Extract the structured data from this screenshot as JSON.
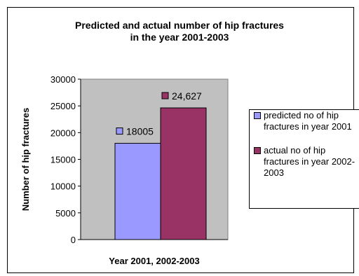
{
  "chart_data": {
    "type": "bar",
    "title_lines": [
      "Predicted and actual number of hip fractures",
      "in the year 2001-2003"
    ],
    "xlabel": "Year 2001, 2002-2003",
    "ylabel": "Number of hip fractures",
    "ylim": [
      0,
      30000
    ],
    "yticks": [
      "0",
      "5000",
      "10000",
      "15000",
      "20000",
      "25000",
      "30000"
    ],
    "yticks_values": [
      0,
      5000,
      10000,
      15000,
      20000,
      25000,
      30000
    ],
    "grid": false,
    "legend_position": "right",
    "series": [
      {
        "name": "predicted no of hip fractures in year 2001",
        "value": 18005,
        "label": "18005",
        "color": "#9999ff"
      },
      {
        "name": "actual no of hip fractures in year 2002-2003",
        "value": 24627,
        "label": "24,627",
        "color": "#993366"
      }
    ],
    "plot_background": "#c0c0c0"
  }
}
